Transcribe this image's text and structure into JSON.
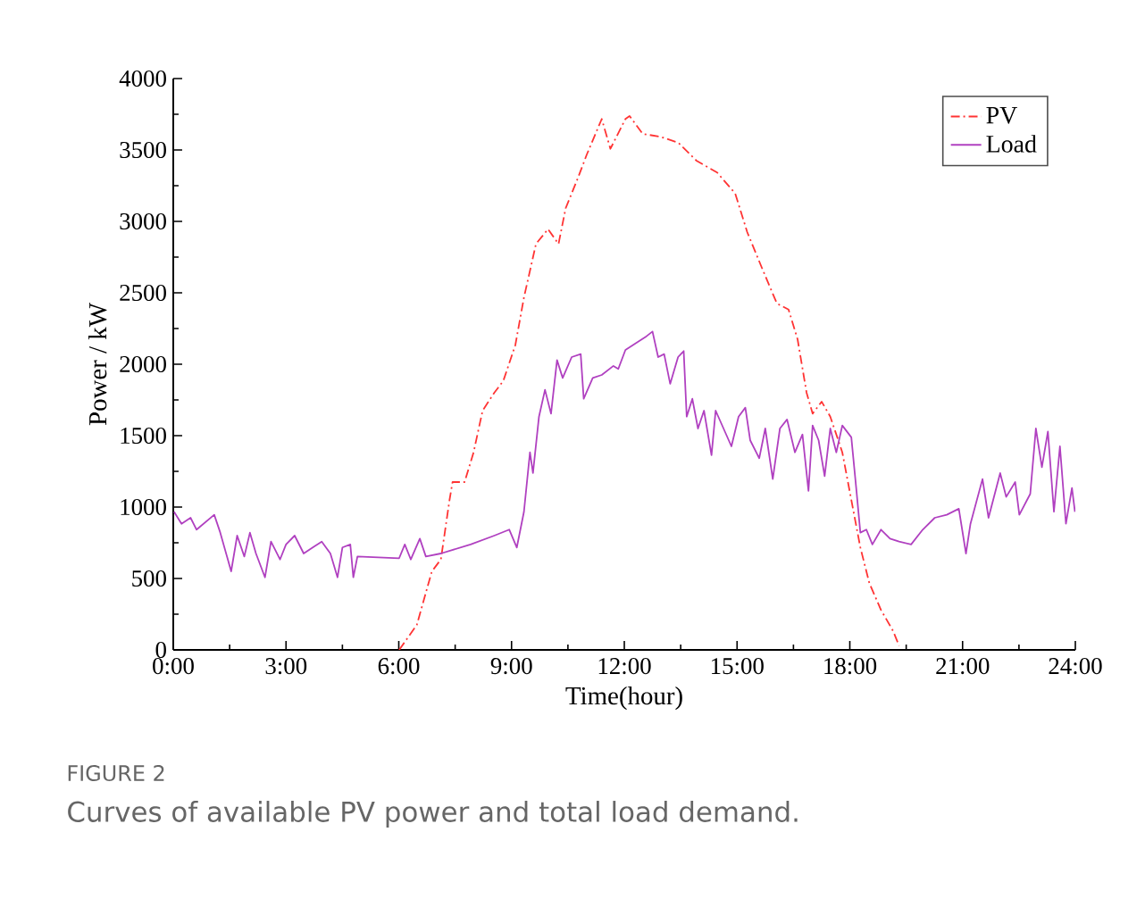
{
  "chart_data": {
    "type": "line",
    "xlabel": "Time(hour)",
    "ylabel": "Power / kW",
    "annotations": [
      "FIGURE 2",
      "Curves of available PV power and total load demand."
    ],
    "xlim": [
      0,
      24
    ],
    "ylim": [
      0,
      4000
    ],
    "xticks": [
      {
        "value": 0,
        "label": "0:00"
      },
      {
        "value": 3,
        "label": "3:00"
      },
      {
        "value": 6,
        "label": "6:00"
      },
      {
        "value": 9,
        "label": "9:00"
      },
      {
        "value": 12,
        "label": "12:00"
      },
      {
        "value": 15,
        "label": "15:00"
      },
      {
        "value": 18,
        "label": "18:00"
      },
      {
        "value": 21,
        "label": "21:00"
      },
      {
        "value": 24,
        "label": "24:00"
      }
    ],
    "yticks": [
      0,
      500,
      1000,
      1500,
      2000,
      2500,
      3000,
      3500,
      4000
    ],
    "grid": false,
    "legend": "top right",
    "marker": "none",
    "series": [
      {
        "name": "PV",
        "color": "#ff3333",
        "line_style": "dashdot",
        "x": [
          6.01,
          6.48,
          6.88,
          7.12,
          7.35,
          7.43,
          7.75,
          7.99,
          8.23,
          8.54,
          8.78,
          9.1,
          9.33,
          9.65,
          9.97,
          10.25,
          10.44,
          10.76,
          11.0,
          11.4,
          11.63,
          11.87,
          12.03,
          12.14,
          12.49,
          12.97,
          13.44,
          13.92,
          14.47,
          14.95,
          15.27,
          15.66,
          16.06,
          16.37,
          16.61,
          16.85,
          17.01,
          17.25,
          17.48,
          17.8,
          18.04,
          18.28,
          18.52,
          18.83,
          19.15,
          19.31
        ],
        "values": [
          0,
          175,
          550,
          633,
          1050,
          1175,
          1175,
          1383,
          1675,
          1800,
          1883,
          2133,
          2467,
          2842,
          2946,
          2842,
          3092,
          3300,
          3467,
          3717,
          3508,
          3633,
          3717,
          3738,
          3613,
          3592,
          3550,
          3425,
          3342,
          3196,
          2925,
          2675,
          2425,
          2383,
          2175,
          1800,
          1654,
          1738,
          1633,
          1383,
          1050,
          717,
          467,
          279,
          133,
          29
        ]
      },
      {
        "name": "Load",
        "color": "#b040c0",
        "line_style": "solid",
        "x": [
          0.02,
          0.22,
          0.46,
          0.62,
          1.09,
          1.25,
          1.54,
          1.7,
          1.89,
          2.04,
          2.2,
          2.44,
          2.6,
          2.84,
          3.0,
          3.23,
          3.47,
          3.71,
          3.95,
          4.18,
          4.37,
          4.5,
          4.71,
          4.79,
          4.9,
          6.01,
          6.16,
          6.32,
          6.56,
          6.72,
          7.12,
          7.91,
          8.54,
          8.94,
          9.14,
          9.33,
          9.49,
          9.57,
          9.73,
          9.89,
          10.05,
          10.21,
          10.36,
          10.6,
          10.84,
          10.92,
          11.16,
          11.4,
          11.71,
          11.84,
          12.03,
          12.35,
          12.59,
          12.75,
          12.9,
          13.06,
          13.22,
          13.43,
          13.58,
          13.66,
          13.81,
          13.96,
          14.12,
          14.32,
          14.43,
          14.64,
          14.85,
          15.04,
          15.22,
          15.35,
          15.59,
          15.75,
          15.95,
          16.14,
          16.33,
          16.54,
          16.74,
          16.9,
          17.01,
          17.17,
          17.33,
          17.48,
          17.64,
          17.8,
          18.04,
          18.17,
          18.28,
          18.44,
          18.6,
          18.83,
          19.07,
          19.31,
          19.63,
          19.94,
          20.26,
          20.58,
          20.9,
          21.09,
          21.21,
          21.53,
          21.69,
          22.0,
          22.16,
          22.4,
          22.51,
          22.8,
          22.95,
          23.11,
          23.27,
          23.43,
          23.59,
          23.75,
          23.91,
          23.99
        ],
        "values": [
          967,
          883,
          925,
          842,
          946,
          821,
          550,
          800,
          654,
          821,
          675,
          508,
          758,
          633,
          738,
          800,
          675,
          717,
          758,
          675,
          508,
          717,
          738,
          508,
          654,
          642,
          738,
          633,
          779,
          654,
          675,
          738,
          800,
          842,
          717,
          967,
          1383,
          1238,
          1633,
          1821,
          1654,
          2029,
          1904,
          2050,
          2071,
          1758,
          1904,
          1925,
          1988,
          1967,
          2100,
          2154,
          2196,
          2229,
          2050,
          2071,
          1863,
          2050,
          2092,
          1633,
          1758,
          1550,
          1675,
          1363,
          1675,
          1550,
          1425,
          1633,
          1696,
          1467,
          1342,
          1550,
          1196,
          1550,
          1613,
          1383,
          1508,
          1113,
          1571,
          1467,
          1217,
          1550,
          1383,
          1571,
          1488,
          1133,
          821,
          842,
          738,
          842,
          779,
          758,
          738,
          842,
          925,
          946,
          988,
          675,
          883,
          1196,
          925,
          1238,
          1071,
          1175,
          946,
          1092,
          1550,
          1279,
          1529,
          967,
          1425,
          883,
          1133,
          967
        ]
      }
    ]
  }
}
